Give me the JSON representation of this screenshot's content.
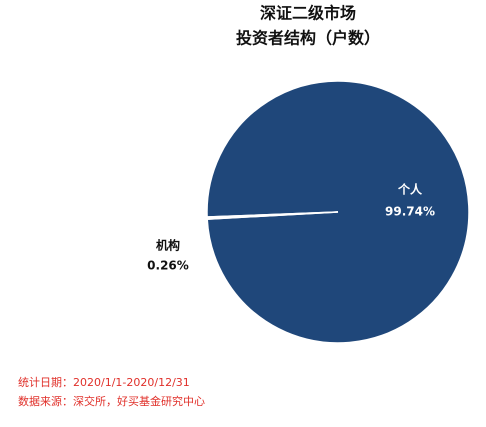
{
  "chart_data": {
    "type": "pie",
    "title": "深证二级市场",
    "subtitle": "投资者结构（户数）",
    "categories": [
      "个人",
      "机构"
    ],
    "values": [
      99.74,
      0.26
    ],
    "value_labels": [
      "99.74%",
      "0.26%"
    ],
    "colors": [
      "#1f477a",
      "#ffffff"
    ],
    "notes": [
      "统计日期：2020/1/1-2020/12/31",
      "数据来源：深交所，好买基金研究中心"
    ]
  }
}
